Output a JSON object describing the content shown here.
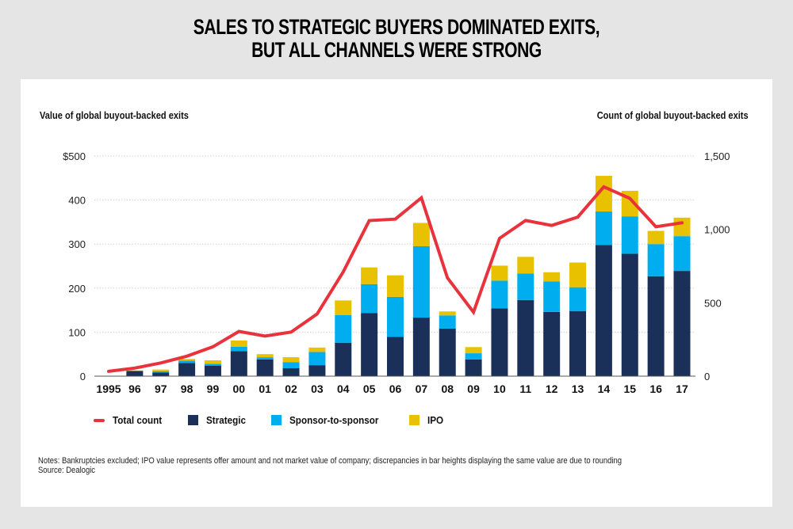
{
  "title_lines": [
    "SALES TO STRATEGIC BUYERS DOMINATED EXITS,",
    "BUT ALL CHANNELS WERE STRONG"
  ],
  "colors": {
    "strategic": "#1b3058",
    "sponsor_to_sponsor": "#00aeef",
    "ipo": "#e8c100",
    "total_count": "#e8333c",
    "page_background": "#e5e5e5",
    "panel_background": "#ffffff"
  },
  "chart_data": {
    "type": "bar",
    "subtype": "stacked-bar-with-line",
    "title": "SALES TO STRATEGIC BUYERS DOMINATED EXITS, BUT ALL CHANNELS WERE STRONG",
    "ylabel": "Value of global buyout-backed exits",
    "y2label": "Count of global buyout-backed exits",
    "xlabel": "",
    "categories": [
      "1995",
      "96",
      "97",
      "98",
      "99",
      "00",
      "01",
      "02",
      "03",
      "04",
      "05",
      "06",
      "07",
      "08",
      "09",
      "10",
      "11",
      "12",
      "13",
      "14",
      "15",
      "16",
      "17"
    ],
    "series": [
      {
        "name": "Strategic",
        "type": "bar",
        "axis": "left",
        "values": [
          0,
          12,
          8,
          30,
          24,
          57,
          38,
          18,
          25,
          76,
          143,
          89,
          133,
          108,
          38,
          154,
          173,
          146,
          148,
          298,
          278,
          227,
          239
        ]
      },
      {
        "name": "Sponsor-to-sponsor",
        "type": "bar",
        "axis": "left",
        "values": [
          0,
          0,
          3,
          5,
          4,
          10,
          5,
          14,
          30,
          63,
          66,
          91,
          162,
          30,
          14,
          63,
          60,
          69,
          54,
          76,
          85,
          73,
          79
        ]
      },
      {
        "name": "IPO",
        "type": "bar",
        "axis": "left",
        "values": [
          0,
          1,
          4,
          4,
          8,
          14,
          7,
          11,
          10,
          33,
          38,
          49,
          53,
          9,
          14,
          34,
          38,
          21,
          56,
          81,
          58,
          30,
          42
        ]
      },
      {
        "name": "Total count",
        "type": "line",
        "axis": "right",
        "values": [
          33,
          55,
          90,
          136,
          200,
          305,
          273,
          300,
          424,
          710,
          1060,
          1070,
          1215,
          670,
          436,
          939,
          1061,
          1027,
          1084,
          1290,
          1211,
          1018,
          1045
        ]
      }
    ],
    "ylim": [
      0,
      500
    ],
    "y2lim": [
      0,
      1500
    ],
    "yticks": [
      0,
      100,
      200,
      300,
      400,
      500
    ],
    "ytick_labels": [
      "0",
      "100",
      "200",
      "300",
      "400",
      "$500"
    ],
    "y2ticks": [
      0,
      500,
      1000,
      1500
    ],
    "y2tick_labels": [
      "0",
      "500",
      "1,000",
      "1,500"
    ],
    "grid": "horizontal dotted",
    "legend": {
      "placement": "bottom-left",
      "entries": [
        "Total count",
        "Strategic",
        "Sponsor-to-sponsor",
        "IPO"
      ]
    }
  },
  "axis_titles": {
    "left": "Value of global buyout-backed exits",
    "right": "Count of global buyout-backed exits"
  },
  "legend_items": [
    {
      "label": "Total count",
      "kind": "line",
      "color_key": "total_count"
    },
    {
      "label": "Strategic",
      "kind": "swatch",
      "color_key": "strategic"
    },
    {
      "label": "Sponsor-to-sponsor",
      "kind": "swatch",
      "color_key": "sponsor_to_sponsor"
    },
    {
      "label": "IPO",
      "kind": "swatch",
      "color_key": "ipo"
    }
  ],
  "notes": {
    "notes_line": "Notes: Bankruptcies excluded; IPO value represents offer amount and not market value of company; discrepancies in bar heights displaying the same value are due to rounding",
    "source_line": "Source: Dealogic"
  }
}
